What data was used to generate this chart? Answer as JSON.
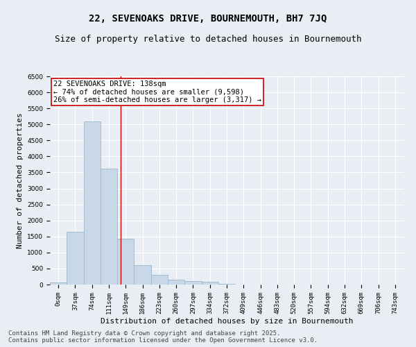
{
  "title": "22, SEVENOAKS DRIVE, BOURNEMOUTH, BH7 7JQ",
  "subtitle": "Size of property relative to detached houses in Bournemouth",
  "xlabel": "Distribution of detached houses by size in Bournemouth",
  "ylabel": "Number of detached properties",
  "bar_color": "#c8d8e8",
  "bar_edge_color": "#9ab8cc",
  "background_color": "#e8eef4",
  "grid_color": "#ffffff",
  "categories": [
    "0sqm",
    "37sqm",
    "74sqm",
    "111sqm",
    "149sqm",
    "186sqm",
    "223sqm",
    "260sqm",
    "297sqm",
    "334sqm",
    "372sqm",
    "409sqm",
    "446sqm",
    "483sqm",
    "520sqm",
    "557sqm",
    "594sqm",
    "632sqm",
    "669sqm",
    "706sqm",
    "743sqm"
  ],
  "values": [
    60,
    1650,
    5100,
    3620,
    1420,
    610,
    310,
    160,
    110,
    80,
    30,
    5,
    0,
    0,
    0,
    0,
    0,
    0,
    0,
    0,
    0
  ],
  "ylim": [
    0,
    6500
  ],
  "yticks": [
    0,
    500,
    1000,
    1500,
    2000,
    2500,
    3000,
    3500,
    4000,
    4500,
    5000,
    5500,
    6000,
    6500
  ],
  "property_line_x": 3.72,
  "annotation_text": "22 SEVENOAKS DRIVE: 138sqm\n← 74% of detached houses are smaller (9,598)\n26% of semi-detached houses are larger (3,317) →",
  "annotation_box_color": "#ffffff",
  "annotation_border_color": "#cc0000",
  "vline_color": "#cc0000",
  "footer_line1": "Contains HM Land Registry data © Crown copyright and database right 2025.",
  "footer_line2": "Contains public sector information licensed under the Open Government Licence v3.0.",
  "title_fontsize": 10,
  "subtitle_fontsize": 9,
  "axis_label_fontsize": 8,
  "tick_fontsize": 6.5,
  "annotation_fontsize": 7.5,
  "footer_fontsize": 6.5
}
